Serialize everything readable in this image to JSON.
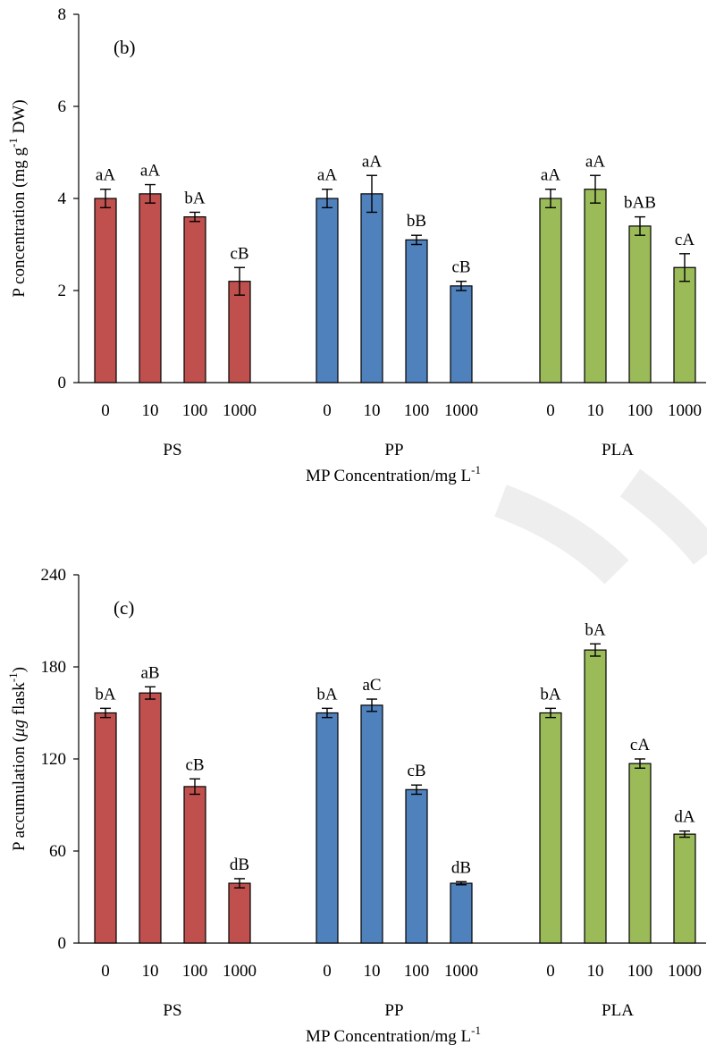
{
  "chart_data": [
    {
      "type": "bar",
      "panel_label": "(b)",
      "ylabel": "P concentration (mg g",
      "ylabel_sup": "-1",
      "ylabel_tail": " DW)",
      "xlabel": "MP Concentration/mg L",
      "xlabel_sup": "-1",
      "ylim": [
        0,
        8
      ],
      "yticks": [
        0,
        2,
        4,
        6,
        8
      ],
      "groups": [
        {
          "name": "PS",
          "color": "#c0504d",
          "categories": [
            "0",
            "10",
            "100",
            "1000"
          ],
          "values": [
            4.0,
            4.1,
            3.6,
            2.2
          ],
          "errors": [
            0.2,
            0.2,
            0.1,
            0.3
          ],
          "labels": [
            "aA",
            "aA",
            "bA",
            "cB"
          ]
        },
        {
          "name": "PP",
          "color": "#4f81bd",
          "categories": [
            "0",
            "10",
            "100",
            "1000"
          ],
          "values": [
            4.0,
            4.1,
            3.1,
            2.1
          ],
          "errors": [
            0.2,
            0.4,
            0.1,
            0.1
          ],
          "labels": [
            "aA",
            "aA",
            "bB",
            "cB"
          ]
        },
        {
          "name": "PLA",
          "color": "#9bbb59",
          "categories": [
            "0",
            "10",
            "100",
            "1000"
          ],
          "values": [
            4.0,
            4.2,
            3.4,
            2.5
          ],
          "errors": [
            0.2,
            0.3,
            0.2,
            0.3
          ],
          "labels": [
            "aA",
            "aA",
            "bAB",
            "cA"
          ]
        }
      ]
    },
    {
      "type": "bar",
      "panel_label": "(c)",
      "ylabel": "P accumulation (",
      "ylabel_mu": "μg",
      "ylabel_mid": " flask",
      "ylabel_sup": "-1",
      "ylabel_tail": ")",
      "xlabel": "MP Concentration/mg L",
      "xlabel_sup": "-1",
      "ylim": [
        0,
        240
      ],
      "yticks": [
        0,
        60,
        120,
        180,
        240
      ],
      "groups": [
        {
          "name": "PS",
          "color": "#c0504d",
          "categories": [
            "0",
            "10",
            "100",
            "1000"
          ],
          "values": [
            150,
            163,
            102,
            39
          ],
          "errors": [
            3,
            4,
            5,
            3
          ],
          "labels": [
            "bA",
            "aB",
            "cB",
            "dB"
          ]
        },
        {
          "name": "PP",
          "color": "#4f81bd",
          "categories": [
            "0",
            "10",
            "100",
            "1000"
          ],
          "values": [
            150,
            155,
            100,
            39
          ],
          "errors": [
            3,
            4,
            3,
            1
          ],
          "labels": [
            "bA",
            "aC",
            "cB",
            "dB"
          ]
        },
        {
          "name": "PLA",
          "color": "#9bbb59",
          "categories": [
            "0",
            "10",
            "100",
            "1000"
          ],
          "values": [
            150,
            191,
            117,
            71
          ],
          "errors": [
            3,
            4,
            3,
            2
          ],
          "labels": [
            "bA",
            "bA",
            "cA",
            "dA"
          ]
        }
      ]
    }
  ]
}
